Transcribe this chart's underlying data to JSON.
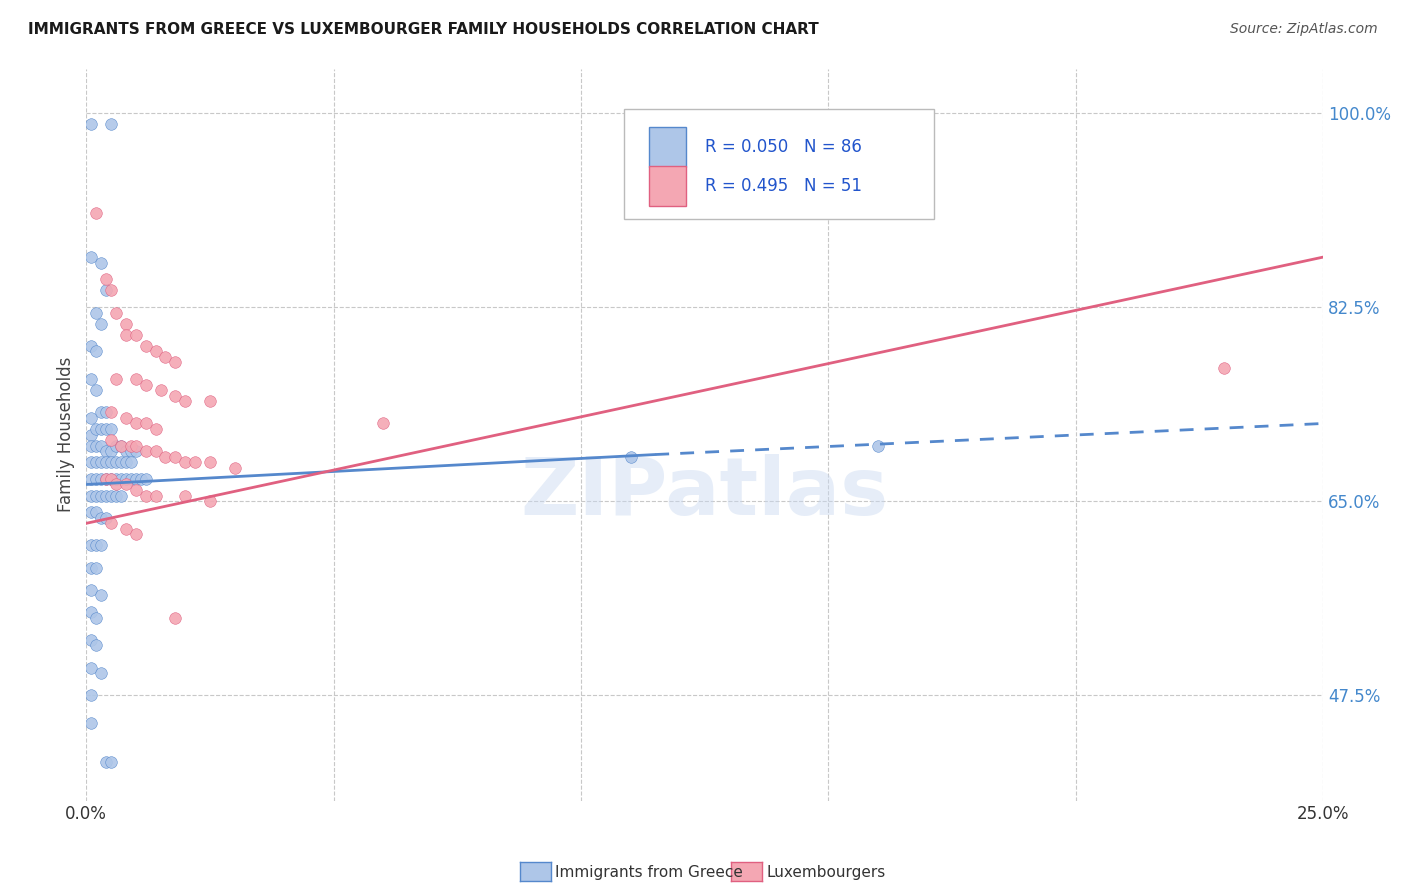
{
  "title": "IMMIGRANTS FROM GREECE VS LUXEMBOURGER FAMILY HOUSEHOLDS CORRELATION CHART",
  "source": "Source: ZipAtlas.com",
  "ylabel": "Family Households",
  "legend_blue": {
    "R": "0.050",
    "N": "86",
    "label": "Immigrants from Greece"
  },
  "legend_pink": {
    "R": "0.495",
    "N": "51",
    "label": "Luxembourgers"
  },
  "blue_color": "#aec6e8",
  "pink_color": "#f4a7b3",
  "blue_line_color": "#5588cc",
  "pink_line_color": "#e06080",
  "blue_scatter": [
    [
      0.001,
      0.99
    ],
    [
      0.005,
      0.99
    ],
    [
      0.001,
      0.87
    ],
    [
      0.003,
      0.865
    ],
    [
      0.004,
      0.84
    ],
    [
      0.002,
      0.82
    ],
    [
      0.003,
      0.81
    ],
    [
      0.001,
      0.79
    ],
    [
      0.002,
      0.785
    ],
    [
      0.001,
      0.76
    ],
    [
      0.002,
      0.75
    ],
    [
      0.001,
      0.725
    ],
    [
      0.003,
      0.73
    ],
    [
      0.004,
      0.73
    ],
    [
      0.001,
      0.71
    ],
    [
      0.002,
      0.715
    ],
    [
      0.003,
      0.715
    ],
    [
      0.004,
      0.715
    ],
    [
      0.005,
      0.715
    ],
    [
      0.001,
      0.7
    ],
    [
      0.002,
      0.7
    ],
    [
      0.003,
      0.7
    ],
    [
      0.004,
      0.695
    ],
    [
      0.005,
      0.695
    ],
    [
      0.006,
      0.7
    ],
    [
      0.007,
      0.7
    ],
    [
      0.008,
      0.695
    ],
    [
      0.009,
      0.695
    ],
    [
      0.01,
      0.695
    ],
    [
      0.001,
      0.685
    ],
    [
      0.002,
      0.685
    ],
    [
      0.003,
      0.685
    ],
    [
      0.004,
      0.685
    ],
    [
      0.005,
      0.685
    ],
    [
      0.006,
      0.685
    ],
    [
      0.007,
      0.685
    ],
    [
      0.008,
      0.685
    ],
    [
      0.009,
      0.685
    ],
    [
      0.001,
      0.67
    ],
    [
      0.002,
      0.67
    ],
    [
      0.003,
      0.67
    ],
    [
      0.004,
      0.67
    ],
    [
      0.005,
      0.67
    ],
    [
      0.006,
      0.67
    ],
    [
      0.007,
      0.67
    ],
    [
      0.008,
      0.67
    ],
    [
      0.009,
      0.67
    ],
    [
      0.01,
      0.67
    ],
    [
      0.011,
      0.67
    ],
    [
      0.012,
      0.67
    ],
    [
      0.001,
      0.655
    ],
    [
      0.002,
      0.655
    ],
    [
      0.003,
      0.655
    ],
    [
      0.004,
      0.655
    ],
    [
      0.005,
      0.655
    ],
    [
      0.006,
      0.655
    ],
    [
      0.007,
      0.655
    ],
    [
      0.001,
      0.64
    ],
    [
      0.002,
      0.64
    ],
    [
      0.003,
      0.635
    ],
    [
      0.004,
      0.635
    ],
    [
      0.001,
      0.61
    ],
    [
      0.002,
      0.61
    ],
    [
      0.003,
      0.61
    ],
    [
      0.001,
      0.59
    ],
    [
      0.002,
      0.59
    ],
    [
      0.001,
      0.57
    ],
    [
      0.003,
      0.565
    ],
    [
      0.001,
      0.55
    ],
    [
      0.002,
      0.545
    ],
    [
      0.001,
      0.525
    ],
    [
      0.002,
      0.52
    ],
    [
      0.001,
      0.5
    ],
    [
      0.003,
      0.495
    ],
    [
      0.001,
      0.475
    ],
    [
      0.001,
      0.45
    ],
    [
      0.004,
      0.415
    ],
    [
      0.005,
      0.415
    ],
    [
      0.11,
      0.69
    ],
    [
      0.16,
      0.7
    ]
  ],
  "pink_scatter": [
    [
      0.002,
      0.91
    ],
    [
      0.004,
      0.85
    ],
    [
      0.005,
      0.84
    ],
    [
      0.006,
      0.82
    ],
    [
      0.008,
      0.81
    ],
    [
      0.008,
      0.8
    ],
    [
      0.01,
      0.8
    ],
    [
      0.012,
      0.79
    ],
    [
      0.014,
      0.785
    ],
    [
      0.016,
      0.78
    ],
    [
      0.018,
      0.775
    ],
    [
      0.006,
      0.76
    ],
    [
      0.01,
      0.76
    ],
    [
      0.012,
      0.755
    ],
    [
      0.015,
      0.75
    ],
    [
      0.018,
      0.745
    ],
    [
      0.02,
      0.74
    ],
    [
      0.025,
      0.74
    ],
    [
      0.005,
      0.73
    ],
    [
      0.008,
      0.725
    ],
    [
      0.01,
      0.72
    ],
    [
      0.012,
      0.72
    ],
    [
      0.014,
      0.715
    ],
    [
      0.06,
      0.72
    ],
    [
      0.005,
      0.705
    ],
    [
      0.007,
      0.7
    ],
    [
      0.009,
      0.7
    ],
    [
      0.01,
      0.7
    ],
    [
      0.012,
      0.695
    ],
    [
      0.014,
      0.695
    ],
    [
      0.016,
      0.69
    ],
    [
      0.018,
      0.69
    ],
    [
      0.02,
      0.685
    ],
    [
      0.022,
      0.685
    ],
    [
      0.025,
      0.685
    ],
    [
      0.03,
      0.68
    ],
    [
      0.004,
      0.67
    ],
    [
      0.005,
      0.67
    ],
    [
      0.006,
      0.665
    ],
    [
      0.008,
      0.665
    ],
    [
      0.01,
      0.66
    ],
    [
      0.012,
      0.655
    ],
    [
      0.014,
      0.655
    ],
    [
      0.02,
      0.655
    ],
    [
      0.025,
      0.65
    ],
    [
      0.005,
      0.63
    ],
    [
      0.008,
      0.625
    ],
    [
      0.01,
      0.62
    ],
    [
      0.018,
      0.545
    ],
    [
      0.23,
      0.77
    ]
  ],
  "blue_line_solid": [
    [
      0.0,
      0.665
    ],
    [
      0.115,
      0.692
    ]
  ],
  "blue_line_dashed": [
    [
      0.115,
      0.692
    ],
    [
      0.25,
      0.72
    ]
  ],
  "pink_line": [
    [
      0.0,
      0.63
    ],
    [
      0.25,
      0.87
    ]
  ],
  "xlim": [
    0.0,
    0.25
  ],
  "ylim": [
    0.38,
    1.04
  ],
  "yticks": [
    0.475,
    0.65,
    0.825,
    1.0
  ],
  "ytick_labels": [
    "47.5%",
    "65.0%",
    "82.5%",
    "100.0%"
  ],
  "xticks": [
    0.0,
    0.05,
    0.1,
    0.15,
    0.2,
    0.25
  ],
  "xtick_labels_show": {
    "0.0": "0.0%",
    "0.25": "25.0%"
  },
  "watermark": "ZIPatlas",
  "background_color": "#ffffff",
  "grid_color": "#c8c8c8",
  "title_fontsize": 11,
  "source_fontsize": 10
}
